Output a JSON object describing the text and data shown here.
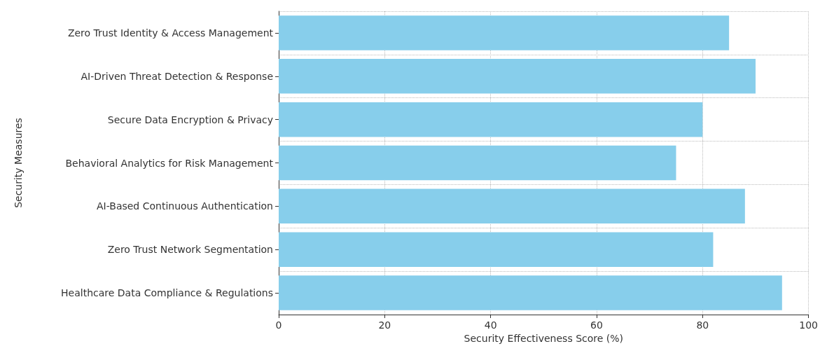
{
  "chart_data": {
    "type": "bar",
    "orientation": "horizontal",
    "categories": [
      "Zero Trust Identity & Access Management",
      "AI-Driven Threat Detection & Response",
      "Secure Data Encryption & Privacy",
      "Behavioral Analytics for Risk Management",
      "AI-Based Continuous Authentication",
      "Zero Trust Network Segmentation",
      "Healthcare Data Compliance & Regulations"
    ],
    "values": [
      85,
      90,
      80,
      75,
      88,
      82,
      95
    ],
    "color": "#87ceeb",
    "xlabel": "Security Effectiveness Score (%)",
    "ylabel": "Security Measures",
    "xlim": [
      0,
      100
    ],
    "xticks": [
      0,
      20,
      40,
      60,
      80,
      100
    ],
    "grid": true
  }
}
